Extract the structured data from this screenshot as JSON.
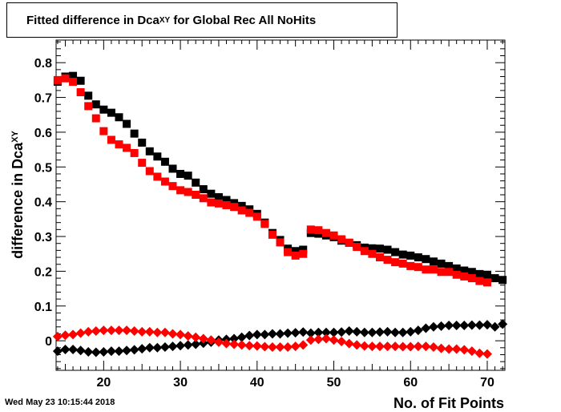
{
  "title": {
    "main": "Fitted difference in Dca",
    "sub": "XY",
    "rest": " for Global Rec All NoHits"
  },
  "timestamp": "Wed May 23 10:15:44 2018",
  "chart_data": {
    "type": "scatter",
    "xlabel": "No. of Fit Points",
    "ylabel_main": "difference in Dca",
    "ylabel_sub": "XY",
    "xlim": [
      13.8,
      72.3
    ],
    "ylim": [
      -0.085,
      0.865
    ],
    "x_ticks": [
      20,
      30,
      40,
      50,
      60,
      70
    ],
    "x_tick_labels": [
      "20",
      "30",
      "40",
      "50",
      "60",
      "70"
    ],
    "y_ticks": [
      0,
      0.1,
      0.2,
      0.3,
      0.4,
      0.5,
      0.6,
      0.7,
      0.8
    ],
    "y_tick_labels": [
      "0",
      "0.1",
      "0.2",
      "0.3",
      "0.4",
      "0.5",
      "0.6",
      "0.7",
      "0.8"
    ],
    "grid": false,
    "legend": "none",
    "series": [
      {
        "color": "#000000",
        "marker": "square",
        "x": [
          14,
          15,
          16,
          17,
          18,
          19,
          20,
          21,
          22,
          23,
          24,
          25,
          26,
          27,
          28,
          29,
          30,
          31,
          32,
          33,
          34,
          35,
          36,
          37,
          38,
          39,
          40,
          41,
          42,
          43,
          44,
          45,
          46,
          47,
          48,
          49,
          50,
          51,
          52,
          53,
          54,
          55,
          56,
          57,
          58,
          59,
          60,
          61,
          62,
          63,
          64,
          65,
          66,
          67,
          68,
          69,
          70,
          71,
          72
        ],
        "y": [
          0.745,
          0.76,
          0.762,
          0.748,
          0.705,
          0.68,
          0.665,
          0.656,
          0.643,
          0.624,
          0.596,
          0.57,
          0.545,
          0.53,
          0.515,
          0.495,
          0.48,
          0.475,
          0.455,
          0.436,
          0.423,
          0.413,
          0.405,
          0.396,
          0.388,
          0.378,
          0.365,
          0.34,
          0.31,
          0.29,
          0.265,
          0.258,
          0.262,
          0.31,
          0.308,
          0.303,
          0.298,
          0.288,
          0.282,
          0.275,
          0.268,
          0.266,
          0.265,
          0.262,
          0.255,
          0.248,
          0.245,
          0.24,
          0.235,
          0.228,
          0.222,
          0.215,
          0.208,
          0.202,
          0.198,
          0.192,
          0.19,
          0.18,
          0.175
        ]
      },
      {
        "color": "#ff0000",
        "marker": "square",
        "x": [
          14,
          15,
          16,
          17,
          18,
          19,
          20,
          21,
          22,
          23,
          24,
          25,
          26,
          27,
          28,
          29,
          30,
          31,
          32,
          33,
          34,
          35,
          36,
          37,
          38,
          39,
          40,
          41,
          42,
          43,
          44,
          45,
          46,
          47,
          48,
          49,
          50,
          51,
          52,
          53,
          54,
          55,
          56,
          57,
          58,
          59,
          60,
          61,
          62,
          63,
          64,
          65,
          66,
          67,
          68,
          69,
          70
        ],
        "y": [
          0.75,
          0.755,
          0.745,
          0.715,
          0.675,
          0.64,
          0.603,
          0.578,
          0.565,
          0.555,
          0.54,
          0.512,
          0.488,
          0.472,
          0.458,
          0.445,
          0.433,
          0.428,
          0.42,
          0.41,
          0.398,
          0.395,
          0.39,
          0.385,
          0.375,
          0.368,
          0.357,
          0.336,
          0.305,
          0.283,
          0.255,
          0.245,
          0.25,
          0.32,
          0.318,
          0.31,
          0.303,
          0.292,
          0.282,
          0.27,
          0.258,
          0.25,
          0.24,
          0.233,
          0.226,
          0.222,
          0.215,
          0.212,
          0.205,
          0.205,
          0.198,
          0.198,
          0.19,
          0.185,
          0.18,
          0.172,
          0.168
        ]
      },
      {
        "color": "#000000",
        "marker": "diamond",
        "x": [
          14,
          15,
          16,
          17,
          18,
          19,
          20,
          21,
          22,
          23,
          24,
          25,
          26,
          27,
          28,
          29,
          30,
          31,
          32,
          33,
          34,
          35,
          36,
          37,
          38,
          39,
          40,
          41,
          42,
          43,
          44,
          45,
          46,
          47,
          48,
          49,
          50,
          51,
          52,
          53,
          54,
          55,
          56,
          57,
          58,
          59,
          60,
          61,
          62,
          63,
          64,
          65,
          66,
          67,
          68,
          69,
          70,
          71,
          72
        ],
        "y": [
          -0.03,
          -0.025,
          -0.025,
          -0.028,
          -0.032,
          -0.033,
          -0.032,
          -0.03,
          -0.03,
          -0.028,
          -0.026,
          -0.023,
          -0.02,
          -0.02,
          -0.018,
          -0.016,
          -0.014,
          -0.012,
          -0.01,
          -0.007,
          -0.004,
          0.002,
          0.004,
          0.006,
          0.01,
          0.015,
          0.018,
          0.018,
          0.02,
          0.02,
          0.022,
          0.023,
          0.025,
          0.022,
          0.024,
          0.024,
          0.024,
          0.025,
          0.028,
          0.026,
          0.024,
          0.024,
          0.025,
          0.026,
          0.024,
          0.024,
          0.026,
          0.03,
          0.036,
          0.04,
          0.042,
          0.044,
          0.044,
          0.044,
          0.045,
          0.045,
          0.046,
          0.04,
          0.048
        ]
      },
      {
        "color": "#ff0000",
        "marker": "diamond",
        "x": [
          14,
          15,
          16,
          17,
          18,
          19,
          20,
          21,
          22,
          23,
          24,
          25,
          26,
          27,
          28,
          29,
          30,
          31,
          32,
          33,
          34,
          35,
          36,
          37,
          38,
          39,
          40,
          41,
          42,
          43,
          44,
          45,
          46,
          47,
          48,
          49,
          50,
          51,
          52,
          53,
          54,
          55,
          56,
          57,
          58,
          59,
          60,
          61,
          62,
          63,
          64,
          65,
          66,
          67,
          68,
          69,
          70
        ],
        "y": [
          0.012,
          0.016,
          0.018,
          0.022,
          0.026,
          0.028,
          0.03,
          0.03,
          0.03,
          0.03,
          0.028,
          0.026,
          0.026,
          0.024,
          0.024,
          0.02,
          0.018,
          0.014,
          0.01,
          0.006,
          0.002,
          -0.004,
          -0.008,
          -0.01,
          -0.012,
          -0.014,
          -0.015,
          -0.017,
          -0.018,
          -0.018,
          -0.018,
          -0.016,
          -0.012,
          0.002,
          0.004,
          0.006,
          0.002,
          -0.002,
          -0.008,
          -0.012,
          -0.015,
          -0.016,
          -0.016,
          -0.016,
          -0.016,
          -0.017,
          -0.017,
          -0.016,
          -0.016,
          -0.018,
          -0.022,
          -0.024,
          -0.024,
          -0.026,
          -0.03,
          -0.036,
          -0.038
        ]
      }
    ]
  }
}
